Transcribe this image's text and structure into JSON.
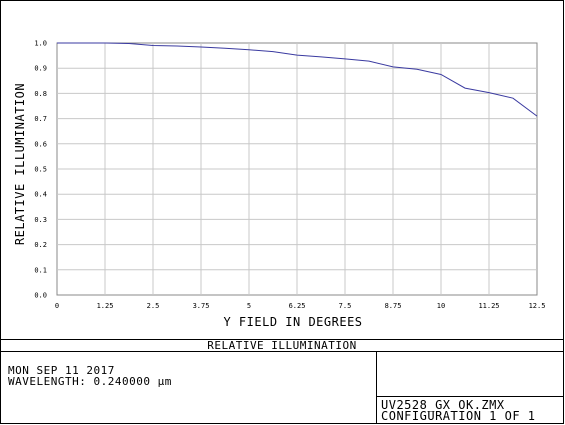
{
  "chart_data": {
    "type": "line",
    "title": "",
    "xlabel": "Y FIELD IN DEGREES",
    "ylabel": "RELATIVE ILLUMINATION",
    "xlim": [
      0,
      12.5
    ],
    "ylim": [
      0,
      1.0
    ],
    "grid": true,
    "x_ticks": [
      0,
      1.25,
      2.5,
      3.75,
      5,
      6.25,
      7.5,
      8.75,
      10,
      11.25,
      12.5
    ],
    "x_tick_labels": [
      "0",
      "1.25",
      "2.5",
      "3.75",
      "5",
      "6.25",
      "7.5",
      "8.75",
      "10",
      "11.25",
      "12.5"
    ],
    "y_ticks": [
      0,
      0.1,
      0.2,
      0.3,
      0.4,
      0.5,
      0.6,
      0.7,
      0.8,
      0.9,
      1.0
    ],
    "y_tick_labels": [
      "0.0",
      "0.1",
      "0.2",
      "0.3",
      "0.4",
      "0.5",
      "0.6",
      "0.7",
      "0.8",
      "0.9",
      "1.0"
    ],
    "series": [
      {
        "color": "#3a3aa0",
        "x": [
          0,
          0.625,
          1.25,
          1.875,
          2.5,
          3.125,
          3.75,
          4.375,
          5.0,
          5.625,
          6.25,
          6.875,
          7.5,
          8.125,
          8.75,
          9.375,
          10.0,
          10.625,
          11.25,
          11.875,
          12.5
        ],
        "y": [
          1.0,
          1.0,
          1.0,
          0.998,
          0.99,
          0.988,
          0.984,
          0.979,
          0.973,
          0.966,
          0.952,
          0.945,
          0.937,
          0.928,
          0.905,
          0.896,
          0.875,
          0.821,
          0.803,
          0.781,
          0.71
        ]
      }
    ]
  },
  "footer": {
    "title": "RELATIVE ILLUMINATION",
    "date": "MON SEP 11 2017",
    "wavelength": "WAVELENGTH: 0.240000 µm",
    "file": "UV2528_GX_OK.ZMX",
    "configuration": "CONFIGURATION 1 OF 1"
  }
}
